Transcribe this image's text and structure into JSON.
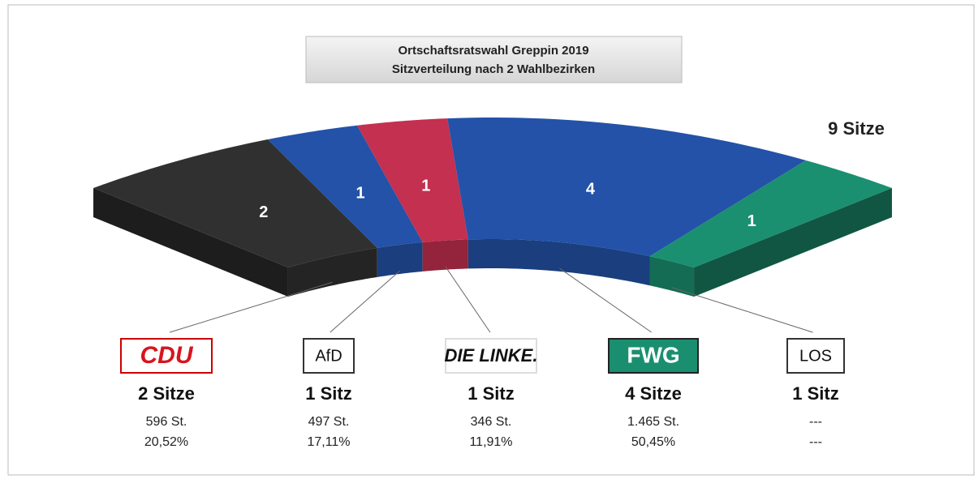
{
  "chart_data": {
    "type": "seat-arc",
    "title": "Ortschaftsratswahl Greppin 2019",
    "subtitle": "Sitzverteilung nach 2 Wahlbezirken",
    "total": {
      "value": 9,
      "label": "9 Sitze"
    },
    "categories": [
      "CDU",
      "AfD",
      "DIE LINKE.",
      "FWG",
      "LOS"
    ],
    "values": [
      2,
      1,
      1,
      4,
      1
    ],
    "value_labels": [
      "2 Sitze",
      "1 Sitz",
      "1 Sitz",
      "4 Sitze",
      "1 Sitz"
    ],
    "colors": [
      "#303030",
      "#2352a8",
      "#c4304f",
      "#2352a8",
      "#1a9070"
    ],
    "votes": [
      596,
      497,
      346,
      1465,
      null
    ],
    "vote_labels": [
      "596 St.",
      "497 St.",
      "346 St.",
      "1.465 St.",
      "---"
    ],
    "percent": [
      20.52,
      17.11,
      11.91,
      50.45,
      null
    ],
    "percent_labels": [
      "20,52%",
      "17,11%",
      "11,91%",
      "50,45%",
      "---"
    ]
  }
}
